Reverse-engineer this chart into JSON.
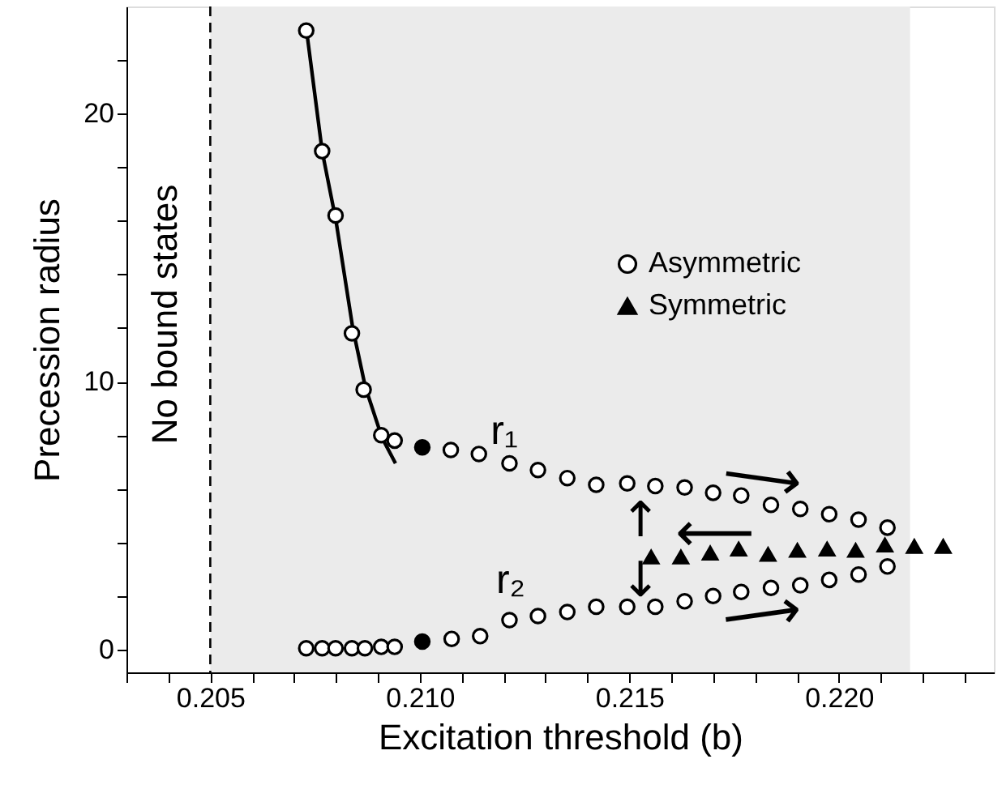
{
  "chart_data": {
    "type": "scatter",
    "xlabel": "Excitation threshold (b)",
    "ylabel": "Precession radius",
    "xlim": [
      0.203,
      0.2237
    ],
    "ylim": [
      -0.85,
      24
    ],
    "xticks": [
      {
        "value": 0.203,
        "label": null
      },
      {
        "value": 0.204,
        "label": null
      },
      {
        "value": 0.205,
        "label": "0.205"
      },
      {
        "value": 0.206,
        "label": null
      },
      {
        "value": 0.207,
        "label": null
      },
      {
        "value": 0.208,
        "label": null
      },
      {
        "value": 0.209,
        "label": null
      },
      {
        "value": 0.21,
        "label": "0.210"
      },
      {
        "value": 0.211,
        "label": null
      },
      {
        "value": 0.212,
        "label": null
      },
      {
        "value": 0.213,
        "label": null
      },
      {
        "value": 0.214,
        "label": null
      },
      {
        "value": 0.215,
        "label": "0.215"
      },
      {
        "value": 0.216,
        "label": null
      },
      {
        "value": 0.217,
        "label": null
      },
      {
        "value": 0.218,
        "label": null
      },
      {
        "value": 0.219,
        "label": null
      },
      {
        "value": 0.22,
        "label": "0.220"
      },
      {
        "value": 0.221,
        "label": null
      },
      {
        "value": 0.222,
        "label": null
      },
      {
        "value": 0.223,
        "label": null
      }
    ],
    "yticks": [
      0,
      {
        "value": 2,
        "label": null
      },
      {
        "value": 4,
        "label": null
      },
      {
        "value": 6,
        "label": null
      },
      {
        "value": 8,
        "label": null
      },
      10,
      {
        "value": 12,
        "label": null
      },
      {
        "value": 14,
        "label": null
      },
      {
        "value": 16,
        "label": null
      },
      {
        "value": 18,
        "label": null
      },
      20,
      {
        "value": 22,
        "label": null
      }
    ],
    "grid": false,
    "legend": "top right",
    "series": [
      {
        "name": "Asymmetric",
        "type": "scatter",
        "marker": "circle",
        "color": "#ffffff",
        "x": [
          0.20729,
          0.20767,
          0.20799,
          0.20838,
          0.20866,
          0.20908,
          0.2094,
          0.21074,
          0.21141,
          0.21214,
          0.21282,
          0.21352,
          0.21421,
          0.21495,
          0.21562,
          0.21632,
          0.217,
          0.21767,
          0.21838,
          0.21908,
          0.21977,
          0.22047,
          0.22116,
          0.20729,
          0.20767,
          0.20799,
          0.20838,
          0.20869,
          0.20908,
          0.2094,
          0.21076,
          0.21144,
          0.21214,
          0.21282,
          0.21352,
          0.21421,
          0.21495,
          0.21562,
          0.21632,
          0.217,
          0.21767,
          0.21838,
          0.21908,
          0.21977,
          0.22047,
          0.22116
        ],
        "values": [
          23.1,
          18.6,
          16.2,
          11.8,
          9.7,
          8.0,
          7.8,
          7.45,
          7.3,
          6.95,
          6.7,
          6.4,
          6.15,
          6.2,
          6.1,
          6.05,
          5.85,
          5.75,
          5.4,
          5.25,
          5.05,
          4.85,
          4.55,
          0.05,
          0.05,
          0.05,
          0.05,
          0.05,
          0.1,
          0.1,
          0.4,
          0.5,
          1.1,
          1.25,
          1.4,
          1.6,
          1.6,
          1.6,
          1.8,
          2.0,
          2.15,
          2.3,
          2.4,
          2.6,
          2.8,
          3.1
        ]
      },
      {
        "name": "Symmetric",
        "type": "scatter",
        "marker": "triangle",
        "color": "#000000",
        "x": [
          0.21552,
          0.21623,
          0.21693,
          0.21761,
          0.21831,
          0.21901,
          0.21972,
          0.2204,
          0.2211,
          0.2218,
          0.22249
        ],
        "values": [
          3.45,
          3.45,
          3.6,
          3.75,
          3.55,
          3.7,
          3.75,
          3.7,
          3.9,
          3.85,
          3.85
        ]
      },
      {
        "type": "scatter",
        "marker": "circle",
        "color": "#000000",
        "x": [
          0.21006,
          0.21006
        ],
        "values": [
          7.55,
          0.3
        ]
      },
      {
        "type": "line",
        "marker": "none",
        "line_style": "solid",
        "color": "#000000",
        "x": [
          0.20729,
          0.20767,
          0.208,
          0.2084,
          0.2087,
          0.2091,
          0.20942
        ],
        "values": [
          23.2,
          18.6,
          16.0,
          12.0,
          9.8,
          7.9,
          6.95
        ]
      }
    ],
    "ref_lines": [
      {
        "axis": "x",
        "value": 0.205,
        "color": "#000000",
        "line_style": "dashed"
      }
    ],
    "bands": [
      {
        "axis": "x",
        "from": 0.205,
        "to": 0.2217,
        "color": "#ebebeb"
      }
    ],
    "annotations": [
      "No bound states",
      "r₁",
      "r₂",
      "⟶",
      "⟵",
      "⟶",
      "↑",
      "↓"
    ]
  }
}
